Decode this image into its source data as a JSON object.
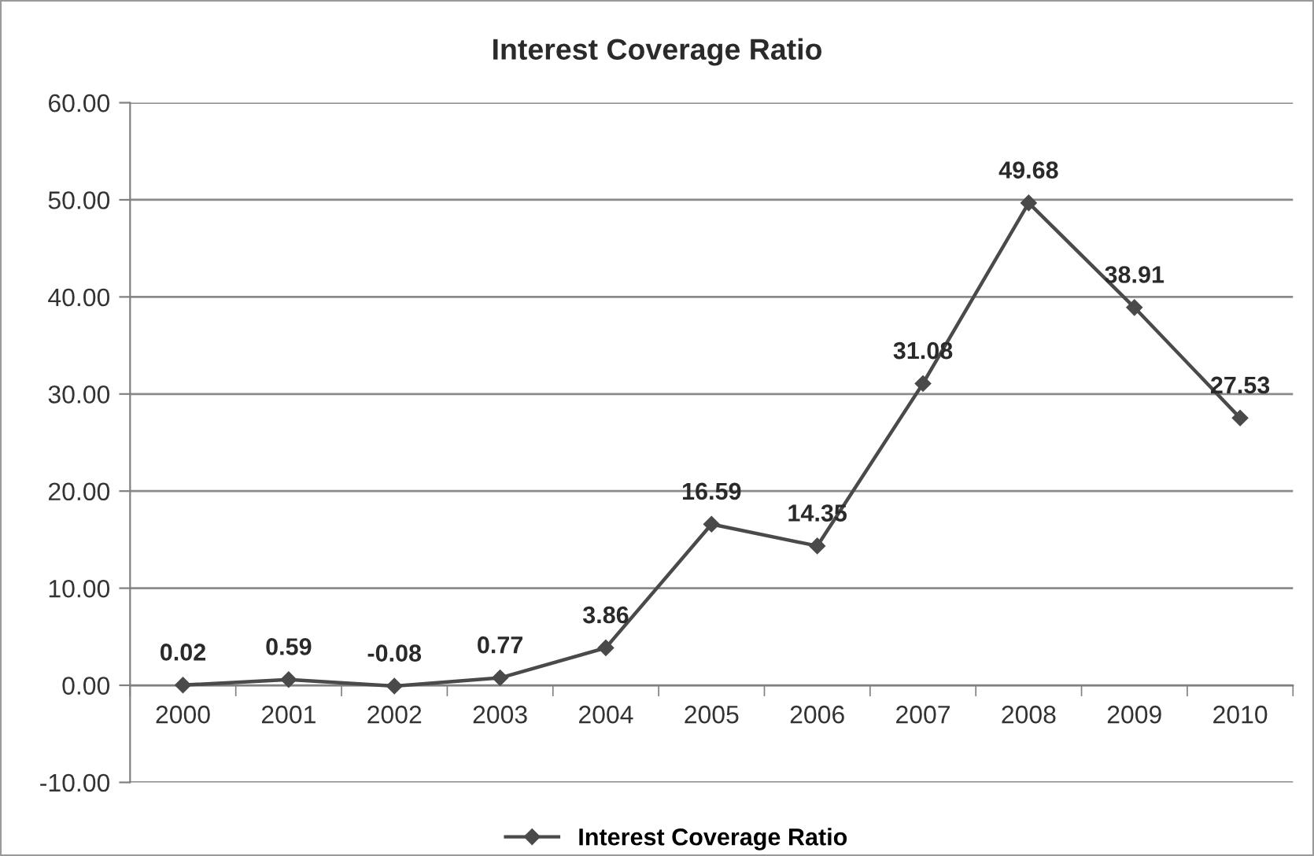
{
  "chart_data": {
    "type": "line",
    "title": "Interest Coverage Ratio",
    "categories": [
      "2000",
      "2001",
      "2002",
      "2003",
      "2004",
      "2005",
      "2006",
      "2007",
      "2008",
      "2009",
      "2010"
    ],
    "series": [
      {
        "name": "Interest Coverage Ratio",
        "color": "#4a4a4a",
        "values": [
          0.02,
          0.59,
          -0.08,
          0.77,
          3.86,
          16.59,
          14.35,
          31.08,
          49.68,
          38.91,
          27.53
        ]
      }
    ],
    "ylim": [
      -10,
      60
    ],
    "yticks": [
      {
        "value": -10,
        "label": "-10.00"
      },
      {
        "value": 0,
        "label": "0.00"
      },
      {
        "value": 10,
        "label": "10.00"
      },
      {
        "value": 20,
        "label": "20.00"
      },
      {
        "value": 30,
        "label": "30.00"
      },
      {
        "value": 40,
        "label": "40.00"
      },
      {
        "value": 50,
        "label": "50.00"
      },
      {
        "value": 60,
        "label": "60.00"
      }
    ],
    "grid": "y",
    "legend": "bottom",
    "marker": "diamond",
    "line_style": "solid",
    "data_labels": true
  }
}
